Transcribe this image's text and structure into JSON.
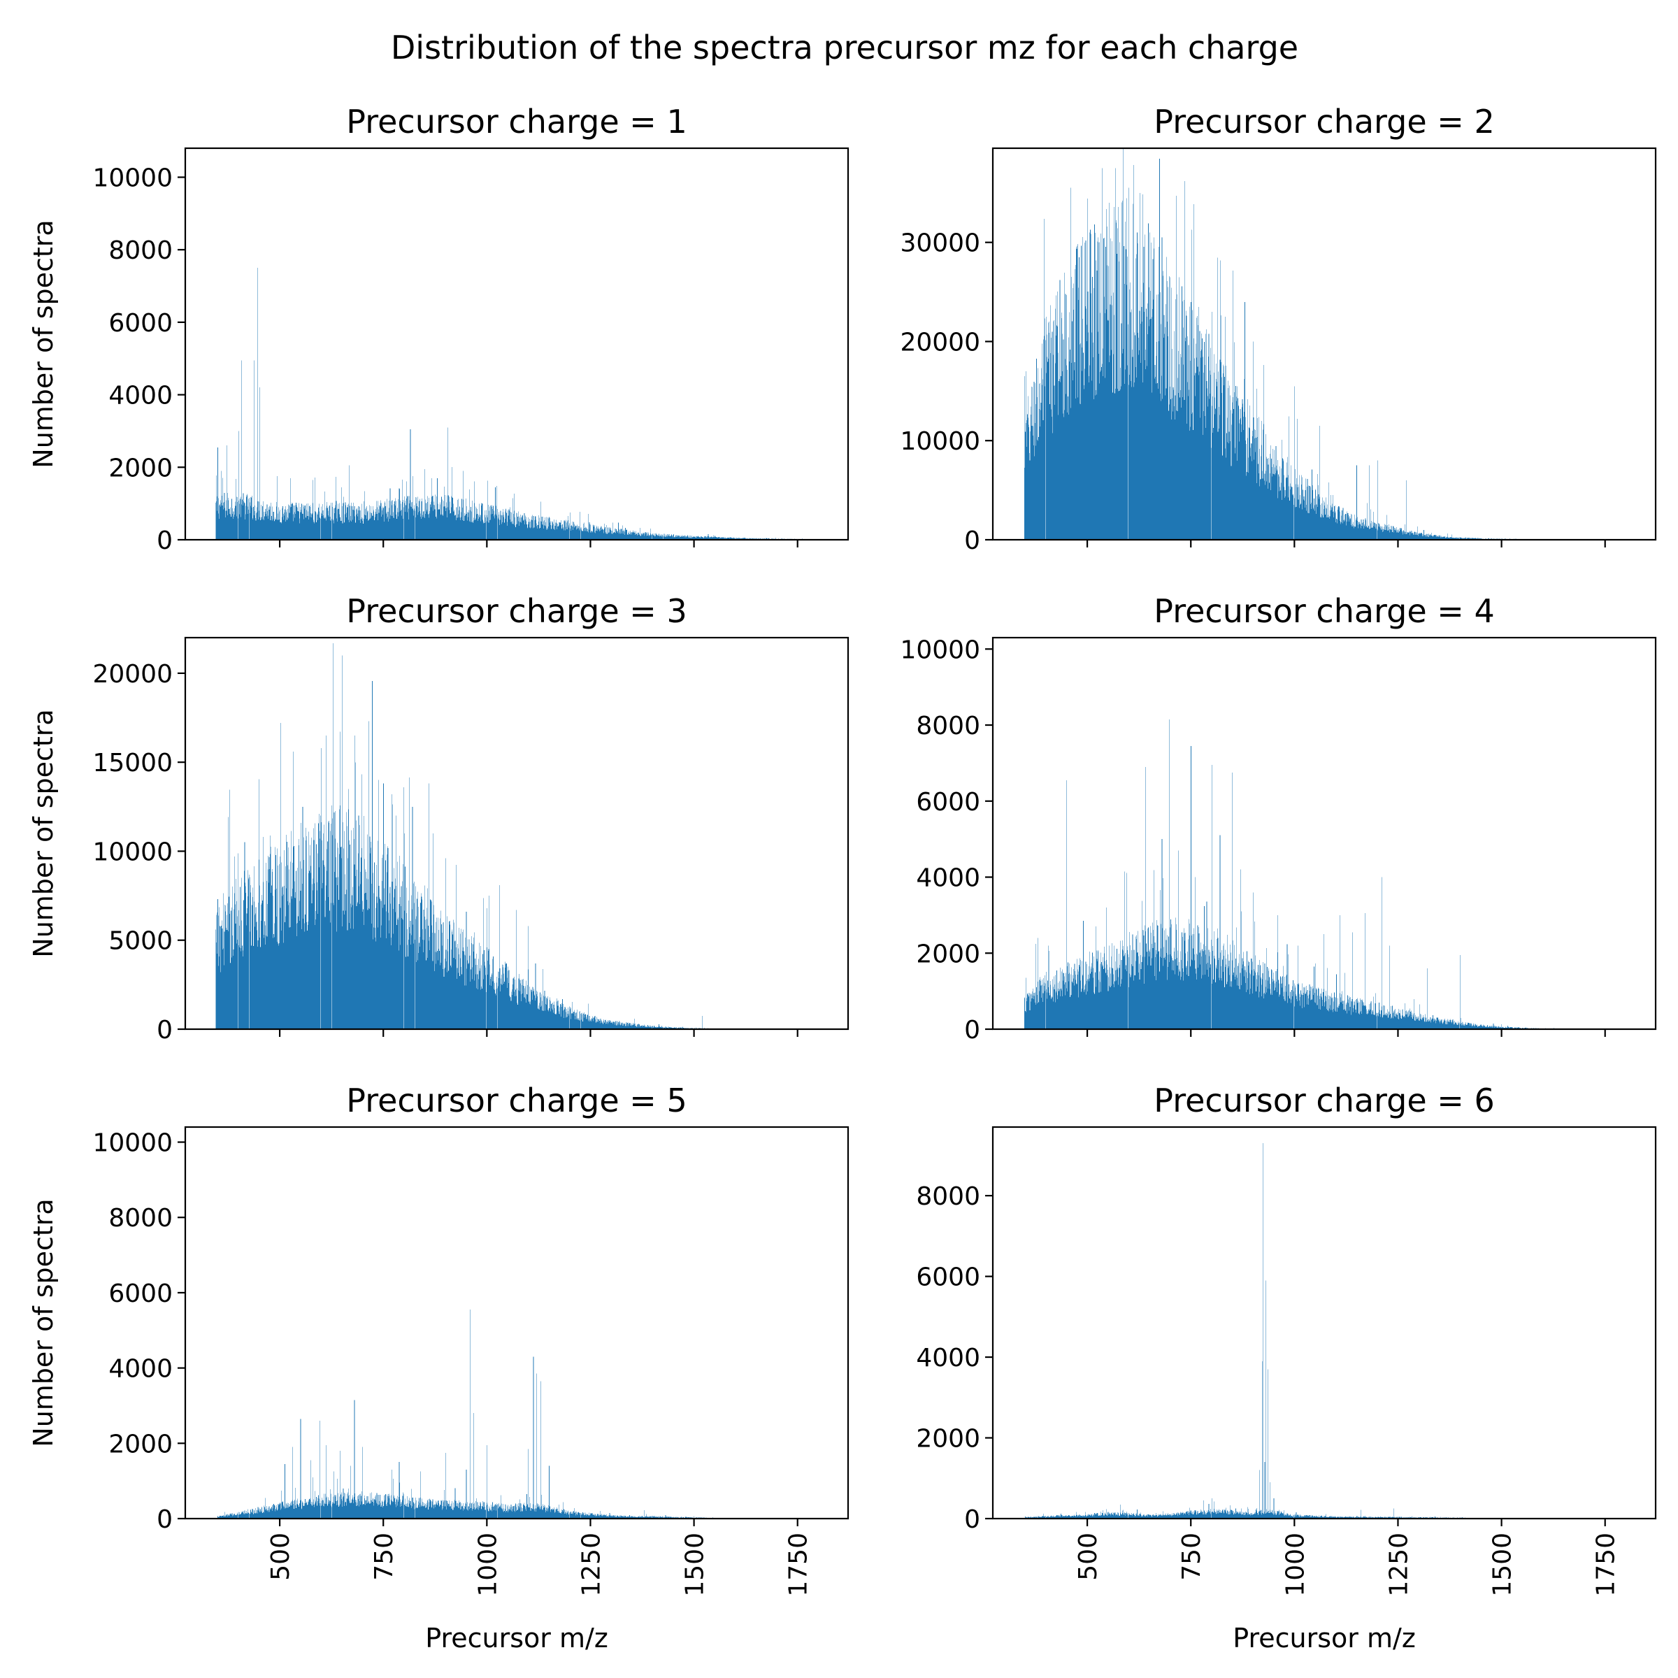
{
  "figure_title": "Distribution of the spectra precursor mz for each charge",
  "colors": {
    "bar": "#1f77b4",
    "axes": "#000000",
    "background": "#ffffff"
  },
  "chart_data": [
    {
      "type": "bar",
      "title": "Precursor charge = 1",
      "xlabel": "",
      "ylabel": "Number of spectra",
      "xlim": [
        272,
        1872
      ],
      "ylim": [
        0,
        10800
      ],
      "xticks": [
        500,
        750,
        1000,
        1250,
        1500,
        1750
      ],
      "xtick_labels_visible": false,
      "yticks": [
        0,
        2000,
        4000,
        6000,
        8000,
        10000
      ],
      "grid": false,
      "bin_width": 1,
      "profile": [
        [
          345,
          1000
        ],
        [
          400,
          1050
        ],
        [
          500,
          800
        ],
        [
          600,
          820
        ],
        [
          700,
          800
        ],
        [
          800,
          950
        ],
        [
          900,
          1000
        ],
        [
          1000,
          780
        ],
        [
          1100,
          560
        ],
        [
          1200,
          430
        ],
        [
          1300,
          260
        ],
        [
          1400,
          150
        ],
        [
          1500,
          90
        ],
        [
          1600,
          50
        ],
        [
          1700,
          25
        ],
        [
          1800,
          10
        ]
      ],
      "spikes": [
        [
          350,
          2550
        ],
        [
          358,
          1900
        ],
        [
          372,
          2600
        ],
        [
          400,
          3000
        ],
        [
          408,
          4950
        ],
        [
          438,
          4950
        ],
        [
          446,
          7500
        ],
        [
          451,
          4200
        ],
        [
          525,
          1700
        ],
        [
          580,
          1650
        ],
        [
          648,
          1450
        ],
        [
          668,
          2050
        ],
        [
          789,
          1400
        ],
        [
          800,
          1200
        ],
        [
          815,
          3050
        ],
        [
          850,
          1950
        ],
        [
          866,
          1700
        ],
        [
          880,
          1700
        ],
        [
          905,
          3100
        ],
        [
          1020,
          1450
        ],
        [
          1062,
          1150
        ],
        [
          1130,
          1050
        ],
        [
          1200,
          750
        ]
      ]
    },
    {
      "type": "bar",
      "title": "Precursor charge = 2",
      "xlabel": "",
      "ylabel": "",
      "xlim": [
        272,
        1872
      ],
      "ylim": [
        0,
        39500
      ],
      "xticks": [
        500,
        750,
        1000,
        1250,
        1500,
        1750
      ],
      "xtick_labels_visible": false,
      "yticks": [
        0,
        10000,
        20000,
        30000
      ],
      "grid": false,
      "bin_width": 1,
      "profile": [
        [
          348,
          9500
        ],
        [
          360,
          12000
        ],
        [
          400,
          18000
        ],
        [
          450,
          22000
        ],
        [
          500,
          25000
        ],
        [
          550,
          26500
        ],
        [
          600,
          27500
        ],
        [
          650,
          25000
        ],
        [
          700,
          22000
        ],
        [
          750,
          19000
        ],
        [
          800,
          16000
        ],
        [
          850,
          13000
        ],
        [
          900,
          10500
        ],
        [
          950,
          8000
        ],
        [
          1000,
          6000
        ],
        [
          1050,
          4200
        ],
        [
          1100,
          2800
        ],
        [
          1150,
          2000
        ],
        [
          1200,
          1500
        ],
        [
          1250,
          1000
        ],
        [
          1300,
          600
        ],
        [
          1350,
          350
        ],
        [
          1400,
          200
        ],
        [
          1450,
          130
        ],
        [
          1500,
          80
        ],
        [
          1600,
          35
        ],
        [
          1700,
          15
        ],
        [
          1800,
          5
        ]
      ],
      "spikes": [
        [
          348,
          16500
        ],
        [
          352,
          17000
        ],
        [
          400,
          22500
        ],
        [
          415,
          21000
        ],
        [
          428,
          21500
        ],
        [
          460,
          35500
        ],
        [
          480,
          28500
        ],
        [
          505,
          31000
        ],
        [
          525,
          30500
        ],
        [
          535,
          37500
        ],
        [
          552,
          34000
        ],
        [
          568,
          37500
        ],
        [
          578,
          30000
        ],
        [
          600,
          35500
        ],
        [
          612,
          37800
        ],
        [
          627,
          35000
        ],
        [
          660,
          30500
        ],
        [
          680,
          30500
        ],
        [
          700,
          26500
        ],
        [
          722,
          26500
        ],
        [
          750,
          24000
        ],
        [
          768,
          23500
        ],
        [
          800,
          23000
        ],
        [
          833,
          22500
        ],
        [
          880,
          24000
        ],
        [
          900,
          20000
        ],
        [
          1000,
          15500
        ],
        [
          1060,
          11500
        ],
        [
          1150,
          7500
        ],
        [
          1180,
          7500
        ],
        [
          1200,
          8000
        ],
        [
          1270,
          6000
        ]
      ]
    },
    {
      "type": "bar",
      "title": "Precursor charge = 3",
      "xlabel": "",
      "ylabel": "Number of spectra",
      "xlim": [
        272,
        1872
      ],
      "ylim": [
        0,
        22000
      ],
      "xticks": [
        500,
        750,
        1000,
        1250,
        1500,
        1750
      ],
      "xtick_labels_visible": false,
      "yticks": [
        0,
        5000,
        10000,
        15000,
        20000
      ],
      "grid": false,
      "bin_width": 1,
      "profile": [
        [
          345,
          5000
        ],
        [
          360,
          6000
        ],
        [
          400,
          7000
        ],
        [
          450,
          7800
        ],
        [
          500,
          8500
        ],
        [
          550,
          9200
        ],
        [
          600,
          9800
        ],
        [
          650,
          10000
        ],
        [
          700,
          9600
        ],
        [
          750,
          8600
        ],
        [
          800,
          7400
        ],
        [
          850,
          6400
        ],
        [
          900,
          5200
        ],
        [
          950,
          4300
        ],
        [
          1000,
          3600
        ],
        [
          1050,
          2900
        ],
        [
          1100,
          2100
        ],
        [
          1150,
          1500
        ],
        [
          1200,
          1000
        ],
        [
          1250,
          650
        ],
        [
          1300,
          420
        ],
        [
          1350,
          280
        ],
        [
          1400,
          160
        ],
        [
          1450,
          90
        ],
        [
          1500,
          50
        ],
        [
          1550,
          25
        ],
        [
          1600,
          12
        ],
        [
          1650,
          5
        ]
      ],
      "spikes": [
        [
          350,
          7300
        ],
        [
          390,
          9700
        ],
        [
          415,
          10500
        ],
        [
          460,
          10800
        ],
        [
          502,
          17200
        ],
        [
          532,
          15600
        ],
        [
          555,
          12500
        ],
        [
          600,
          15800
        ],
        [
          612,
          16500
        ],
        [
          650,
          21000
        ],
        [
          665,
          13500
        ],
        [
          690,
          12000
        ],
        [
          715,
          17300
        ],
        [
          738,
          14000
        ],
        [
          750,
          13800
        ],
        [
          770,
          13200
        ],
        [
          780,
          12000
        ],
        [
          800,
          11000
        ],
        [
          820,
          12500
        ],
        [
          860,
          13800
        ],
        [
          870,
          11000
        ],
        [
          900,
          9600
        ],
        [
          950,
          6600
        ],
        [
          1030,
          8100
        ],
        [
          1070,
          6700
        ],
        [
          1100,
          5800
        ],
        [
          1520,
          750
        ]
      ]
    },
    {
      "type": "bar",
      "title": "Precursor charge = 4",
      "xlabel": "",
      "ylabel": "",
      "xlim": [
        272,
        1872
      ],
      "ylim": [
        0,
        10300
      ],
      "xticks": [
        500,
        750,
        1000,
        1250,
        1500,
        1750
      ],
      "xtick_labels_visible": false,
      "yticks": [
        0,
        2000,
        4000,
        6000,
        8000,
        10000
      ],
      "grid": false,
      "bin_width": 1,
      "profile": [
        [
          348,
          700
        ],
        [
          380,
          1100
        ],
        [
          450,
          1400
        ],
        [
          500,
          1600
        ],
        [
          550,
          1800
        ],
        [
          600,
          2000
        ],
        [
          650,
          2200
        ],
        [
          700,
          2350
        ],
        [
          750,
          2300
        ],
        [
          800,
          2150
        ],
        [
          850,
          1900
        ],
        [
          900,
          1600
        ],
        [
          950,
          1300
        ],
        [
          1000,
          1050
        ],
        [
          1050,
          900
        ],
        [
          1100,
          760
        ],
        [
          1150,
          660
        ],
        [
          1200,
          560
        ],
        [
          1250,
          450
        ],
        [
          1300,
          350
        ],
        [
          1350,
          260
        ],
        [
          1400,
          170
        ],
        [
          1450,
          100
        ],
        [
          1500,
          60
        ],
        [
          1550,
          35
        ],
        [
          1600,
          15
        ],
        [
          1700,
          5
        ]
      ],
      "spikes": [
        [
          352,
          1350
        ],
        [
          380,
          2400
        ],
        [
          405,
          2200
        ],
        [
          450,
          6550
        ],
        [
          490,
          2850
        ],
        [
          520,
          2700
        ],
        [
          545,
          3200
        ],
        [
          590,
          4150
        ],
        [
          640,
          6900
        ],
        [
          680,
          5000
        ],
        [
          698,
          8150
        ],
        [
          720,
          4700
        ],
        [
          750,
          7450
        ],
        [
          760,
          4000
        ],
        [
          800,
          6950
        ],
        [
          820,
          5100
        ],
        [
          850,
          6750
        ],
        [
          870,
          4200
        ],
        [
          900,
          3600
        ],
        [
          960,
          3000
        ],
        [
          1070,
          2500
        ],
        [
          1110,
          3000
        ],
        [
          1140,
          2550
        ],
        [
          1170,
          3050
        ],
        [
          1210,
          4000
        ],
        [
          1230,
          2200
        ],
        [
          1320,
          1600
        ],
        [
          1400,
          1950
        ]
      ]
    },
    {
      "type": "bar",
      "title": "Precursor charge = 5",
      "xlabel": "Precursor m/z",
      "ylabel": "Number of spectra",
      "xlim": [
        272,
        1872
      ],
      "ylim": [
        0,
        10400
      ],
      "xticks": [
        500,
        750,
        1000,
        1250,
        1500,
        1750
      ],
      "xtick_labels_visible": true,
      "yticks": [
        0,
        2000,
        4000,
        6000,
        8000,
        10000
      ],
      "grid": false,
      "bin_width": 1,
      "profile": [
        [
          350,
          50
        ],
        [
          400,
          150
        ],
        [
          450,
          250
        ],
        [
          500,
          350
        ],
        [
          550,
          450
        ],
        [
          600,
          520
        ],
        [
          650,
          560
        ],
        [
          700,
          580
        ],
        [
          750,
          540
        ],
        [
          800,
          480
        ],
        [
          850,
          430
        ],
        [
          900,
          400
        ],
        [
          950,
          380
        ],
        [
          1000,
          360
        ],
        [
          1050,
          300
        ],
        [
          1100,
          350
        ],
        [
          1150,
          280
        ],
        [
          1200,
          170
        ],
        [
          1250,
          120
        ],
        [
          1300,
          80
        ],
        [
          1350,
          60
        ],
        [
          1400,
          60
        ],
        [
          1450,
          40
        ],
        [
          1500,
          30
        ],
        [
          1550,
          15
        ],
        [
          1600,
          8
        ],
        [
          1700,
          3
        ]
      ],
      "spikes": [
        [
          512,
          1450
        ],
        [
          530,
          1900
        ],
        [
          550,
          2650
        ],
        [
          575,
          1550
        ],
        [
          580,
          1100
        ],
        [
          596,
          2600
        ],
        [
          612,
          1950
        ],
        [
          630,
          1250
        ],
        [
          646,
          1800
        ],
        [
          670,
          1400
        ],
        [
          680,
          3150
        ],
        [
          700,
          1900
        ],
        [
          770,
          1300
        ],
        [
          788,
          1500
        ],
        [
          840,
          1250
        ],
        [
          900,
          1750
        ],
        [
          950,
          1300
        ],
        [
          960,
          5550
        ],
        [
          968,
          2800
        ],
        [
          1000,
          1950
        ],
        [
          1100,
          1850
        ],
        [
          1112,
          4300
        ],
        [
          1120,
          3850
        ],
        [
          1130,
          3650
        ],
        [
          1150,
          1400
        ],
        [
          1380,
          220
        ]
      ]
    },
    {
      "type": "bar",
      "title": "Precursor charge = 6",
      "xlabel": "Precursor m/z",
      "ylabel": "",
      "xlim": [
        272,
        1872
      ],
      "ylim": [
        0,
        9700
      ],
      "xticks": [
        500,
        750,
        1000,
        1250,
        1500,
        1750
      ],
      "xtick_labels_visible": true,
      "yticks": [
        0,
        2000,
        4000,
        6000,
        8000
      ],
      "grid": false,
      "bin_width": 1,
      "profile": [
        [
          350,
          30
        ],
        [
          400,
          60
        ],
        [
          500,
          90
        ],
        [
          550,
          130
        ],
        [
          600,
          120
        ],
        [
          650,
          80
        ],
        [
          700,
          110
        ],
        [
          750,
          160
        ],
        [
          800,
          200
        ],
        [
          850,
          170
        ],
        [
          900,
          120
        ],
        [
          930,
          200
        ],
        [
          960,
          150
        ],
        [
          1000,
          80
        ],
        [
          1100,
          50
        ],
        [
          1200,
          40
        ],
        [
          1300,
          30
        ],
        [
          1400,
          20
        ],
        [
          1500,
          10
        ],
        [
          1600,
          5
        ],
        [
          1700,
          3
        ]
      ],
      "spikes": [
        [
          580,
          350
        ],
        [
          780,
          450
        ],
        [
          800,
          500
        ],
        [
          916,
          1200
        ],
        [
          922,
          3900
        ],
        [
          924,
          9300
        ],
        [
          928,
          1400
        ],
        [
          930,
          5900
        ],
        [
          935,
          3700
        ],
        [
          940,
          900
        ],
        [
          950,
          500
        ],
        [
          1160,
          220
        ],
        [
          1240,
          250
        ]
      ]
    }
  ]
}
